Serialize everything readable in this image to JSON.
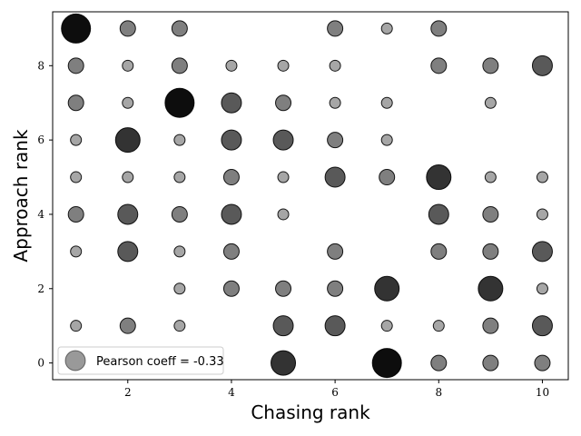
{
  "chart_data": {
    "type": "scatter",
    "xlabel": "Chasing rank",
    "ylabel": "Approach rank",
    "xlim": [
      0.55,
      10.5
    ],
    "ylim": [
      -0.45,
      9.45
    ],
    "x_ticks": [
      2,
      4,
      6,
      8,
      10
    ],
    "y_ticks": [
      0,
      2,
      4,
      6,
      8
    ],
    "grid": false,
    "legend": {
      "label": "Pearson coeff = -0.33",
      "position": "lower-left"
    },
    "point_color": "#000000",
    "size_scale": {
      "min_radius": 6,
      "max_radius": 16
    },
    "points": [
      {
        "x": 1,
        "y": 9,
        "count": 5
      },
      {
        "x": 2,
        "y": 9,
        "count": 2
      },
      {
        "x": 3,
        "y": 9,
        "count": 2
      },
      {
        "x": 6,
        "y": 9,
        "count": 2
      },
      {
        "x": 7,
        "y": 9,
        "count": 1
      },
      {
        "x": 8,
        "y": 9,
        "count": 2
      },
      {
        "x": 1,
        "y": 8,
        "count": 2
      },
      {
        "x": 2,
        "y": 8,
        "count": 1
      },
      {
        "x": 3,
        "y": 8,
        "count": 2
      },
      {
        "x": 4,
        "y": 8,
        "count": 1
      },
      {
        "x": 5,
        "y": 8,
        "count": 1
      },
      {
        "x": 6,
        "y": 8,
        "count": 1
      },
      {
        "x": 8,
        "y": 8,
        "count": 2
      },
      {
        "x": 9,
        "y": 8,
        "count": 2
      },
      {
        "x": 10,
        "y": 8,
        "count": 3
      },
      {
        "x": 1,
        "y": 7,
        "count": 2
      },
      {
        "x": 2,
        "y": 7,
        "count": 1
      },
      {
        "x": 3,
        "y": 7,
        "count": 5
      },
      {
        "x": 4,
        "y": 7,
        "count": 3
      },
      {
        "x": 5,
        "y": 7,
        "count": 2
      },
      {
        "x": 6,
        "y": 7,
        "count": 1
      },
      {
        "x": 7,
        "y": 7,
        "count": 1
      },
      {
        "x": 9,
        "y": 7,
        "count": 1
      },
      {
        "x": 1,
        "y": 6,
        "count": 1
      },
      {
        "x": 2,
        "y": 6,
        "count": 4
      },
      {
        "x": 3,
        "y": 6,
        "count": 1
      },
      {
        "x": 4,
        "y": 6,
        "count": 3
      },
      {
        "x": 5,
        "y": 6,
        "count": 3
      },
      {
        "x": 6,
        "y": 6,
        "count": 2
      },
      {
        "x": 7,
        "y": 6,
        "count": 1
      },
      {
        "x": 1,
        "y": 5,
        "count": 1
      },
      {
        "x": 2,
        "y": 5,
        "count": 1
      },
      {
        "x": 3,
        "y": 5,
        "count": 1
      },
      {
        "x": 4,
        "y": 5,
        "count": 2
      },
      {
        "x": 5,
        "y": 5,
        "count": 1
      },
      {
        "x": 6,
        "y": 5,
        "count": 3
      },
      {
        "x": 7,
        "y": 5,
        "count": 2
      },
      {
        "x": 8,
        "y": 5,
        "count": 4
      },
      {
        "x": 9,
        "y": 5,
        "count": 1
      },
      {
        "x": 10,
        "y": 5,
        "count": 1
      },
      {
        "x": 1,
        "y": 4,
        "count": 2
      },
      {
        "x": 2,
        "y": 4,
        "count": 3
      },
      {
        "x": 3,
        "y": 4,
        "count": 2
      },
      {
        "x": 4,
        "y": 4,
        "count": 3
      },
      {
        "x": 5,
        "y": 4,
        "count": 1
      },
      {
        "x": 8,
        "y": 4,
        "count": 3
      },
      {
        "x": 9,
        "y": 4,
        "count": 2
      },
      {
        "x": 10,
        "y": 4,
        "count": 1
      },
      {
        "x": 1,
        "y": 3,
        "count": 1
      },
      {
        "x": 2,
        "y": 3,
        "count": 3
      },
      {
        "x": 3,
        "y": 3,
        "count": 1
      },
      {
        "x": 4,
        "y": 3,
        "count": 2
      },
      {
        "x": 6,
        "y": 3,
        "count": 2
      },
      {
        "x": 8,
        "y": 3,
        "count": 2
      },
      {
        "x": 9,
        "y": 3,
        "count": 2
      },
      {
        "x": 10,
        "y": 3,
        "count": 3
      },
      {
        "x": 3,
        "y": 2,
        "count": 1
      },
      {
        "x": 4,
        "y": 2,
        "count": 2
      },
      {
        "x": 5,
        "y": 2,
        "count": 2
      },
      {
        "x": 6,
        "y": 2,
        "count": 2
      },
      {
        "x": 7,
        "y": 2,
        "count": 4
      },
      {
        "x": 9,
        "y": 2,
        "count": 4
      },
      {
        "x": 10,
        "y": 2,
        "count": 1
      },
      {
        "x": 1,
        "y": 1,
        "count": 1
      },
      {
        "x": 2,
        "y": 1,
        "count": 2
      },
      {
        "x": 3,
        "y": 1,
        "count": 1
      },
      {
        "x": 5,
        "y": 1,
        "count": 3
      },
      {
        "x": 6,
        "y": 1,
        "count": 3
      },
      {
        "x": 7,
        "y": 1,
        "count": 1
      },
      {
        "x": 8,
        "y": 1,
        "count": 1
      },
      {
        "x": 9,
        "y": 1,
        "count": 2
      },
      {
        "x": 10,
        "y": 1,
        "count": 3
      },
      {
        "x": 5,
        "y": 0,
        "count": 4
      },
      {
        "x": 7,
        "y": 0,
        "count": 5
      },
      {
        "x": 8,
        "y": 0,
        "count": 2
      },
      {
        "x": 9,
        "y": 0,
        "count": 2
      },
      {
        "x": 10,
        "y": 0,
        "count": 2
      }
    ]
  }
}
